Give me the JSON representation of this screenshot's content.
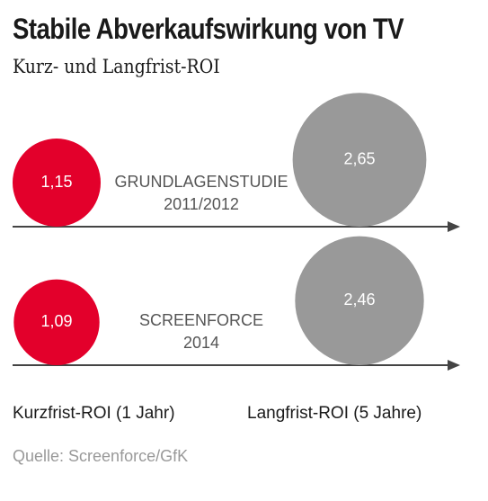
{
  "title": "Stabile Abverkaufswirkung von TV",
  "subtitle": "Kurz- und Langfrist-ROI",
  "colors": {
    "short_term": "#e3002b",
    "long_term": "#999999",
    "axis": "#444444",
    "study_label": "#555555"
  },
  "chart_data": {
    "type": "bubble",
    "title": "Stabile Abverkaufswirkung von TV",
    "subtitle": "Kurz- und Langfrist-ROI",
    "columns": [
      "Kurzfrist-ROI (1 Jahr)",
      "Langfrist-ROI (5 Jahre)"
    ],
    "rows": [
      {
        "label_line1": "GRUNDLAGENSTUDIE",
        "label_line2": "2011/2012",
        "short_term": 1.15,
        "short_term_label": "1,15",
        "long_term": 2.65,
        "long_term_label": "2,65"
      },
      {
        "label_line1": "SCREENFORCE",
        "label_line2": "2014",
        "short_term": 1.09,
        "short_term_label": "1,09",
        "long_term": 2.46,
        "long_term_label": "2,46"
      }
    ]
  },
  "footer": {
    "short_term_label": "Kurzfrist-ROI (1 Jahr)",
    "long_term_label": "Langfrist-ROI (5 Jahre)"
  },
  "source": "Quelle: Screenforce/GfK"
}
